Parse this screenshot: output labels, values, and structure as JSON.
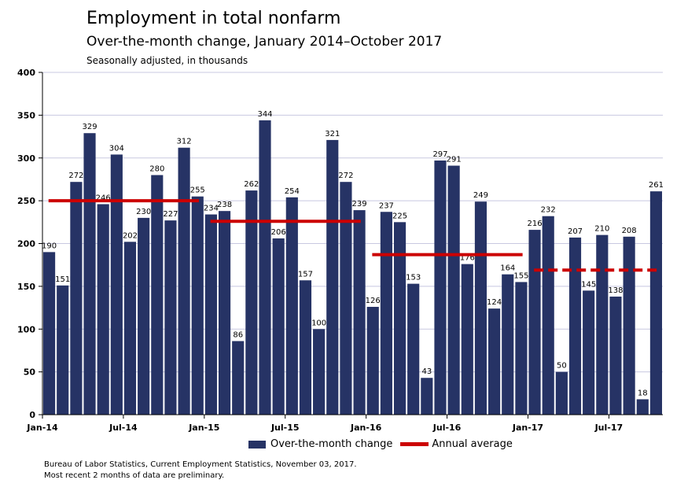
{
  "chart_data": {
    "type": "bar",
    "title": "Employment in total nonfarm",
    "subtitle": "Over-the-month change, January 2014–October 2017",
    "units": "Seasonally adjusted, in thousands",
    "ylim": [
      0,
      400
    ],
    "yticks": [
      0,
      50,
      100,
      150,
      200,
      250,
      300,
      350,
      400
    ],
    "xtick_labels": [
      {
        "index": 0,
        "label": "Jan-14"
      },
      {
        "index": 6,
        "label": "Jul-14"
      },
      {
        "index": 12,
        "label": "Jan-15"
      },
      {
        "index": 18,
        "label": "Jul-15"
      },
      {
        "index": 24,
        "label": "Jan-16"
      },
      {
        "index": 30,
        "label": "Jul-16"
      },
      {
        "index": 36,
        "label": "Jan-17"
      },
      {
        "index": 42,
        "label": "Jul-17"
      }
    ],
    "values": [
      190,
      151,
      272,
      329,
      246,
      304,
      202,
      230,
      280,
      227,
      312,
      255,
      234,
      238,
      86,
      262,
      344,
      206,
      254,
      157,
      100,
      321,
      272,
      239,
      126,
      237,
      225,
      153,
      43,
      297,
      291,
      176,
      249,
      124,
      164,
      155,
      216,
      232,
      50,
      207,
      145,
      210,
      138,
      208,
      18,
      261
    ],
    "annual_averages": [
      {
        "start": 0,
        "end": 11,
        "value": 250,
        "dashed": false
      },
      {
        "start": 12,
        "end": 23,
        "value": 226,
        "dashed": false
      },
      {
        "start": 24,
        "end": 35,
        "value": 187,
        "dashed": false
      },
      {
        "start": 36,
        "end": 45,
        "value": 169,
        "dashed": true
      }
    ],
    "series": [
      {
        "name": "Over-the-month change",
        "color": "#263365"
      },
      {
        "name": "Annual average",
        "color": "#cc0000"
      }
    ],
    "grid": true
  },
  "legend": {
    "bar_label": "Over-the-month change",
    "line_label": "Annual average"
  },
  "source": {
    "line1": "Bureau of Labor Statistics, Current Employment Statistics, November 03, 2017.",
    "line2": "Most recent 2 months of data are preliminary."
  }
}
